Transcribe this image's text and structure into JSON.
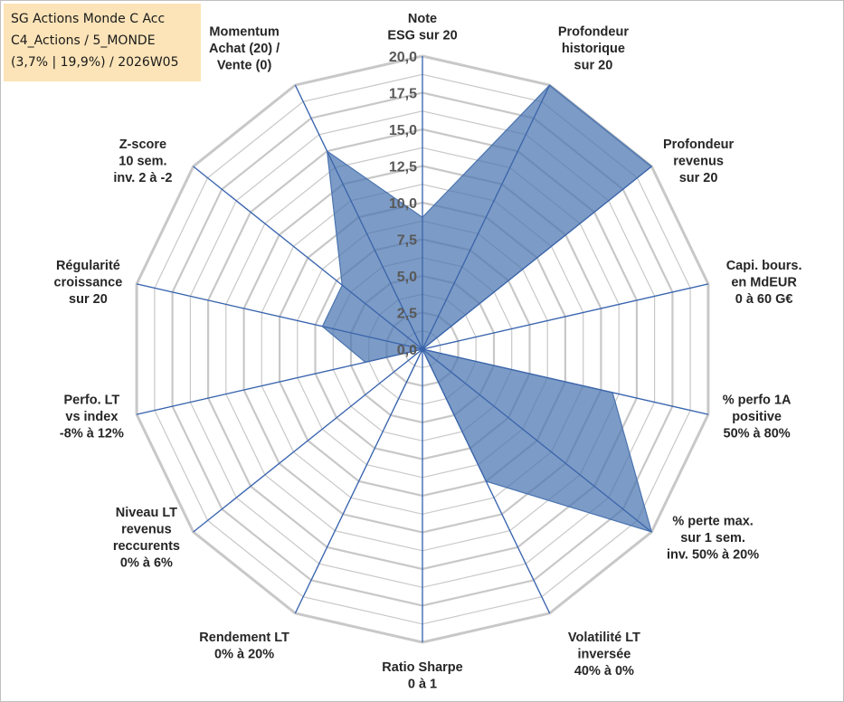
{
  "title_box": {
    "line1": "SG Actions Monde C Acc",
    "line2": "C4_Actions / 5_MONDE",
    "line3": "(3,7% | 19,9%) / 2026W05"
  },
  "chart_data": {
    "type": "radar",
    "title": "SG Actions Monde C Acc",
    "range": [
      0,
      20
    ],
    "tick_values": [
      0,
      2.5,
      5,
      7.5,
      10,
      12.5,
      15,
      17.5,
      20
    ],
    "tick_labels": [
      "0,0",
      "2,5",
      "5,0",
      "7,5",
      "10,0",
      "12,5",
      "15,0",
      "17,5",
      "20,0"
    ],
    "axes": [
      {
        "label": [
          "Note",
          "ESG sur 20"
        ],
        "value": 9.0
      },
      {
        "label": [
          "Profondeur",
          "historique",
          "sur 20"
        ],
        "value": 20.0
      },
      {
        "label": [
          "Profondeur",
          "revenus",
          "sur 20"
        ],
        "value": 20.0
      },
      {
        "label": [
          "Capi. bours.",
          "en MdEUR",
          "0 à 60 G€"
        ],
        "value": 0.0
      },
      {
        "label": [
          "% perfo 1A",
          "positive",
          "50% à 80%"
        ],
        "value": 13.3
      },
      {
        "label": [
          "% perte max.",
          "sur 1 sem.",
          "inv. 50% à 20%"
        ],
        "value": 20.0
      },
      {
        "label": [
          "Volatilité LT",
          "inversée",
          "40% à 0%"
        ],
        "value": 10.0
      },
      {
        "label": [
          "Ratio Sharpe",
          "0 à 1"
        ],
        "value": 0.0
      },
      {
        "label": [
          "Rendement LT",
          "0% à 20%"
        ],
        "value": 4.2
      },
      {
        "label": [
          "Niveau LT",
          "revenus",
          "reccurents",
          "0% à 6%"
        ],
        "value": 0.0
      },
      {
        "label": [
          "Perfo. LT",
          "vs index",
          "-8% à 12%"
        ],
        "value": 4.0
      },
      {
        "label": [
          "Régularité",
          "croissance",
          "sur 20"
        ],
        "value": 7.0
      },
      {
        "label": [
          "Z-score",
          "10 sem.",
          "inv. 2 à -2"
        ],
        "value": 7.0
      },
      {
        "label": [
          "Momentum",
          "Achat (20) /",
          "Vente (0)"
        ],
        "value": 15.0
      }
    ],
    "series": [
      {
        "name": "SG Actions Monde C Acc",
        "color": "#4a74b0",
        "fill_opacity": 0.72
      }
    ],
    "grid_color": "#c8c8c8",
    "spoke_color": "#4472c4"
  }
}
